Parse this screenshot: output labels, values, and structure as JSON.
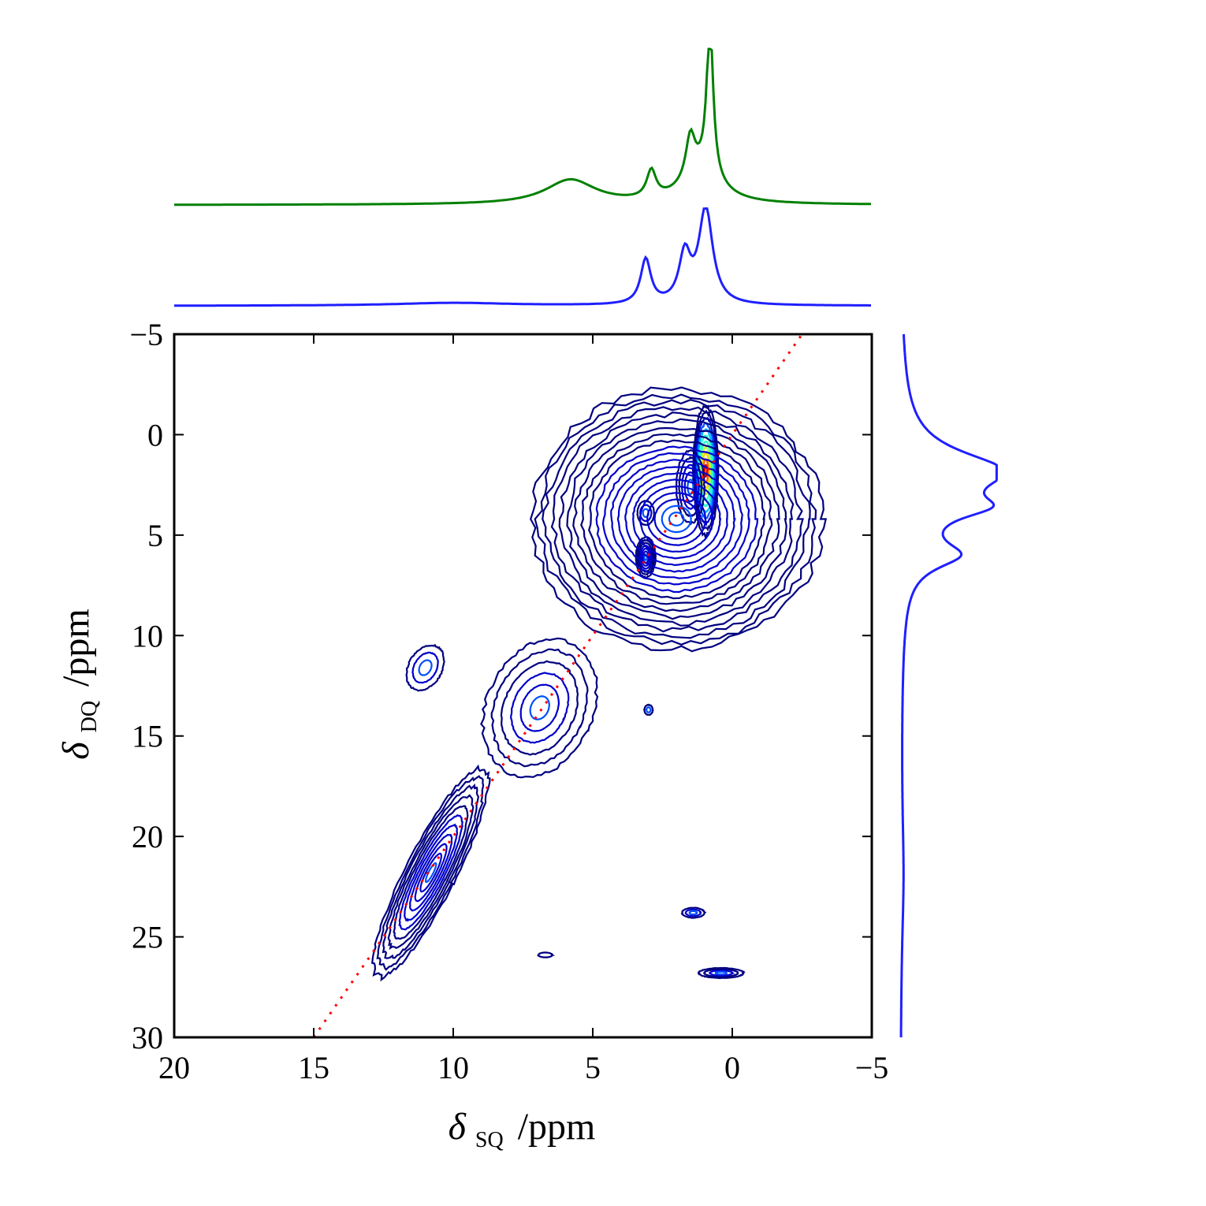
{
  "chart_data": {
    "type": "contour",
    "x_axis": {
      "label_symbol": "δ",
      "label_subscript": "SQ",
      "label_unit": "/ppm",
      "range": [
        20,
        -5
      ],
      "ticks": [
        20,
        15,
        10,
        5,
        0,
        -5
      ],
      "tick_labels": [
        "20",
        "15",
        "10",
        "5",
        "0",
        "−5"
      ]
    },
    "y_axis": {
      "label_symbol": "δ",
      "label_subscript": "DQ",
      "label_unit": "/ppm",
      "range": [
        -5,
        30
      ],
      "ticks": [
        -5,
        0,
        5,
        10,
        15,
        20,
        25,
        30
      ],
      "tick_labels": [
        "−5",
        "0",
        "5",
        "10",
        "15",
        "20",
        "25",
        "30"
      ]
    },
    "diagonal": {
      "style": "dotted",
      "color": "#ff0000",
      "slope": 2,
      "description": "δDQ = 2·δSQ"
    },
    "contour_peaks": [
      {
        "sq": 0.95,
        "dq": 1.8,
        "sx": 0.45,
        "sy": 3.2,
        "rot": 0,
        "levels": 11
      },
      {
        "sq": 3.1,
        "dq": 6.1,
        "sx": 0.35,
        "sy": 1.0,
        "rot": 0,
        "levels": 7
      },
      {
        "sq": 3.1,
        "dq": 3.9,
        "sx": 0.3,
        "sy": 0.6,
        "rot": 0,
        "levels": 3
      },
      {
        "sq": 1.5,
        "dq": 2.6,
        "sx": 0.5,
        "sy": 1.8,
        "rot": 0,
        "levels": 5
      },
      {
        "sq": 2.0,
        "dq": 4.2,
        "sx": 5.2,
        "sy": 6.5,
        "rot": 0,
        "levels": 20
      },
      {
        "sq": 6.9,
        "dq": 13.6,
        "sx": 1.9,
        "sy": 3.6,
        "rot": 25,
        "levels": 6
      },
      {
        "sq": 10.8,
        "dq": 21.8,
        "sx": 0.9,
        "sy": 5.8,
        "rot": 27,
        "levels": 11
      },
      {
        "sq": 11.0,
        "dq": 11.6,
        "sx": 0.6,
        "sy": 1.2,
        "rot": 30,
        "levels": 3
      },
      {
        "sq": 1.4,
        "dq": 23.8,
        "sx": 0.4,
        "sy": 0.25,
        "rot": 0,
        "levels": 3
      },
      {
        "sq": 0.4,
        "dq": 26.8,
        "sx": 0.8,
        "sy": 0.25,
        "rot": 0,
        "levels": 4
      },
      {
        "sq": 6.7,
        "dq": 25.9,
        "sx": 0.25,
        "sy": 0.12,
        "rot": 0,
        "levels": 1
      },
      {
        "sq": 3.0,
        "dq": 13.7,
        "sx": 0.15,
        "sy": 0.25,
        "rot": 0,
        "levels": 2
      }
    ],
    "top_projection": {
      "color": "#1f1fff",
      "baseline_sq_range": [
        20,
        -5
      ],
      "peaks": [
        {
          "sq": 3.1,
          "height": 0.47,
          "width": 0.22
        },
        {
          "sq": 1.7,
          "height": 0.5,
          "width": 0.25
        },
        {
          "sq": 0.95,
          "height": 1.0,
          "width": 0.3
        },
        {
          "sq": 10.0,
          "height": 0.03,
          "width": 2.5
        }
      ]
    },
    "top_1d_spectrum": {
      "color": "#008000",
      "peaks": [
        {
          "sq": 0.8,
          "height": 1.0,
          "width": 0.14
        },
        {
          "sq": 1.5,
          "height": 0.28,
          "width": 0.2
        },
        {
          "sq": 2.9,
          "height": 0.18,
          "width": 0.2
        },
        {
          "sq": 5.8,
          "height": 0.16,
          "width": 1.1
        },
        {
          "sq": 1.1,
          "height": 0.2,
          "width": 0.8
        }
      ]
    },
    "right_projection": {
      "color": "#1f1fff",
      "peaks": [
        {
          "dq": 1.8,
          "height": 1.0,
          "width": 1.2
        },
        {
          "dq": 3.6,
          "height": 0.62,
          "width": 0.7
        },
        {
          "dq": 6.0,
          "height": 0.52,
          "width": 0.8
        },
        {
          "dq": 22.0,
          "height": 0.03,
          "width": 4.0
        }
      ]
    },
    "colormap": [
      "#00007f",
      "#0000cd",
      "#0050ff",
      "#00b4ff",
      "#2cffca",
      "#b8ff3f",
      "#ffd400",
      "#ff5a00",
      "#cd0000"
    ]
  }
}
